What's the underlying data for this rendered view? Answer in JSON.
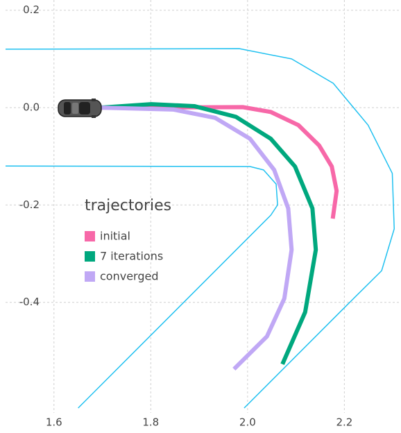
{
  "chart_data": {
    "type": "line",
    "legend_title": "trajectories",
    "legend": "center-left",
    "grid": true,
    "xlim": [
      1.5,
      2.317
    ],
    "ylim": [
      -0.627,
      0.221
    ],
    "xticks": [
      1.6,
      1.8,
      {
        "value": 2.0,
        "label": "2.0"
      },
      2.2
    ],
    "yticks": [
      0.2,
      {
        "value": 0,
        "label": "0.0"
      },
      -0.2,
      -0.4
    ],
    "series": [
      {
        "color": "#1ec0f0",
        "width": 1.5,
        "x": [
          1.5,
          1.983,
          2.091,
          2.177,
          2.249,
          2.299,
          2.303,
          2.277,
          2.205,
          1.993
        ],
        "values": [
          0.12,
          0.121,
          0.1,
          0.05,
          -0.036,
          -0.135,
          -0.249,
          -0.335,
          -0.406,
          -0.617
        ]
      },
      {
        "color": "#1ec0f0",
        "width": 1.5,
        "x": [
          1.5,
          2.005,
          2.033,
          2.059,
          2.062,
          2.048,
          1.65
        ],
        "values": [
          -0.12,
          -0.121,
          -0.128,
          -0.157,
          -0.2,
          -0.221,
          -0.617
        ]
      },
      {
        "name": "initial",
        "color": "#f768a8",
        "width": 6,
        "x": [
          1.696,
          1.99,
          2.048,
          2.105,
          2.148,
          2.174,
          2.184,
          2.176
        ],
        "values": [
          0,
          0.001,
          -0.009,
          -0.036,
          -0.078,
          -0.121,
          -0.171,
          -0.228
        ]
      },
      {
        "name": "7 iterations",
        "color": "#00a87e",
        "width": 6,
        "x": [
          1.696,
          1.801,
          1.89,
          1.976,
          2.048,
          2.098,
          2.134,
          2.141,
          2.119,
          2.072
        ],
        "values": [
          0,
          0.007,
          0.003,
          -0.019,
          -0.064,
          -0.121,
          -0.207,
          -0.292,
          -0.42,
          -0.527
        ]
      },
      {
        "name": "converged",
        "color": "#c0a8f5",
        "width": 6,
        "x": [
          1.696,
          1.847,
          1.933,
          2.005,
          2.055,
          2.084,
          2.091,
          2.076,
          2.04,
          1.972
        ],
        "values": [
          0,
          -0.004,
          -0.021,
          -0.064,
          -0.128,
          -0.207,
          -0.292,
          -0.392,
          -0.47,
          -0.537
        ]
      }
    ]
  }
}
